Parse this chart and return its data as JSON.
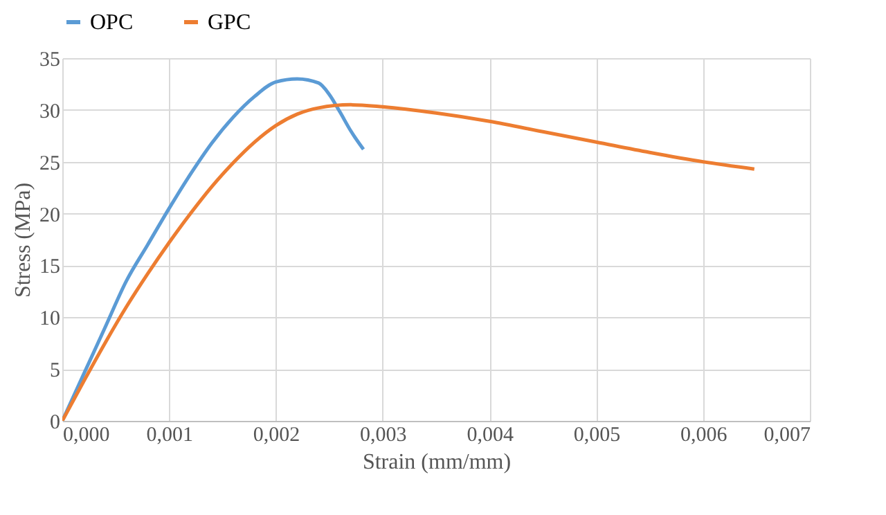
{
  "chart_data": {
    "type": "line",
    "xlabel": "Strain (mm/mm)",
    "ylabel": "Stress (MPa)",
    "xlim": [
      0,
      0.007
    ],
    "xticks": [
      {
        "value": 0,
        "label": "0,000"
      },
      {
        "value": 0.001,
        "label": "0,001"
      },
      {
        "value": 0.002,
        "label": "0,002"
      },
      {
        "value": 0.003,
        "label": "0,003"
      },
      {
        "value": 0.004,
        "label": "0,004"
      },
      {
        "value": 0.005,
        "label": "0,005"
      },
      {
        "value": 0.006,
        "label": "0,006"
      },
      {
        "value": 0.007,
        "label": "0,007"
      }
    ],
    "ylim": [
      0,
      35
    ],
    "yticks": [
      0,
      5,
      10,
      15,
      20,
      25,
      30,
      35
    ],
    "grid": true,
    "legend": "top",
    "series": [
      {
        "name": "OPC",
        "color": "#5b9bd5",
        "x": [
          0,
          0.0002,
          0.0004,
          0.0006,
          0.0008,
          0.001,
          0.0012,
          0.0014,
          0.0016,
          0.0018,
          0.002,
          0.0022,
          0.0024,
          0.0025,
          0.0026,
          0.0027,
          0.00282
        ],
        "values": [
          0,
          4.5,
          9,
          13.5,
          17,
          20.5,
          23.8,
          26.8,
          29.3,
          31.3,
          32.7,
          33,
          32.6,
          31.5,
          29.8,
          28,
          26.2
        ]
      },
      {
        "name": "GPC",
        "color": "#ed7d31",
        "x": [
          0,
          0.0002,
          0.0004,
          0.0006,
          0.0008,
          0.001,
          0.0012,
          0.0014,
          0.0016,
          0.0018,
          0.002,
          0.0022,
          0.0024,
          0.0027,
          0.003,
          0.0035,
          0.004,
          0.0045,
          0.005,
          0.0055,
          0.006,
          0.00648
        ],
        "values": [
          0,
          3.8,
          7.5,
          11,
          14.2,
          17.2,
          20,
          22.6,
          24.9,
          26.9,
          28.5,
          29.6,
          30.2,
          30.5,
          30.3,
          29.7,
          28.9,
          27.9,
          26.9,
          25.9,
          25,
          24.3
        ]
      }
    ]
  }
}
